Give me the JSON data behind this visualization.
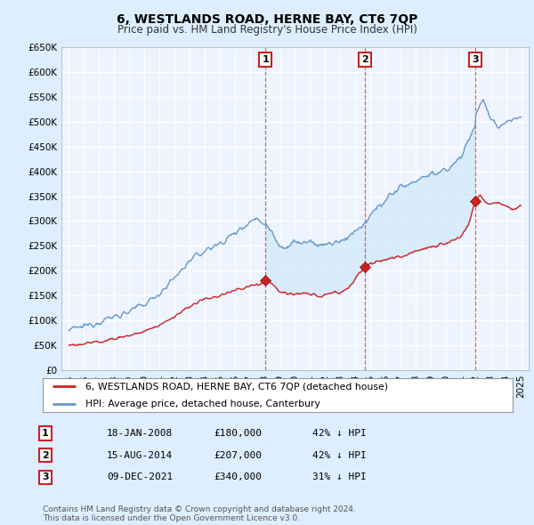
{
  "title": "6, WESTLANDS ROAD, HERNE BAY, CT6 7QP",
  "subtitle": "Price paid vs. HM Land Registry's House Price Index (HPI)",
  "transactions": [
    {
      "num": 1,
      "date": "18-JAN-2008",
      "price": 180000,
      "pct": "42%",
      "dir": "↓",
      "x_year": 2008.05
    },
    {
      "num": 2,
      "date": "15-AUG-2014",
      "price": 207000,
      "pct": "42%",
      "dir": "↓",
      "x_year": 2014.62
    },
    {
      "num": 3,
      "date": "09-DEC-2021",
      "price": 340000,
      "pct": "31%",
      "dir": "↓",
      "x_year": 2021.94
    }
  ],
  "legend_line1": "6, WESTLANDS ROAD, HERNE BAY, CT6 7QP (detached house)",
  "legend_line2": "HPI: Average price, detached house, Canterbury",
  "footer": "Contains HM Land Registry data © Crown copyright and database right 2024.\nThis data is licensed under the Open Government Licence v3.0.",
  "ylim": [
    0,
    650000
  ],
  "xlim": [
    1994.5,
    2025.5
  ],
  "yticks": [
    0,
    50000,
    100000,
    150000,
    200000,
    250000,
    300000,
    350000,
    400000,
    450000,
    500000,
    550000,
    600000,
    650000
  ],
  "ytick_labels": [
    "£0",
    "£50K",
    "£100K",
    "£150K",
    "£200K",
    "£250K",
    "£300K",
    "£350K",
    "£400K",
    "£450K",
    "£500K",
    "£550K",
    "£600K",
    "£650K"
  ],
  "xticks": [
    1995,
    1996,
    1997,
    1998,
    1999,
    2000,
    2001,
    2002,
    2003,
    2004,
    2005,
    2006,
    2007,
    2008,
    2009,
    2010,
    2011,
    2012,
    2013,
    2014,
    2015,
    2016,
    2017,
    2018,
    2019,
    2020,
    2021,
    2022,
    2023,
    2024,
    2025
  ],
  "hpi_color": "#6699cc",
  "price_color": "#cc2222",
  "fill_color": "#d0e8f8",
  "vline_color": "#dd4444",
  "bg_color": "#ddeeff",
  "plot_bg": "#eef4ff",
  "grid_color": "#ffffff",
  "marker_box_color": "#cc2222"
}
